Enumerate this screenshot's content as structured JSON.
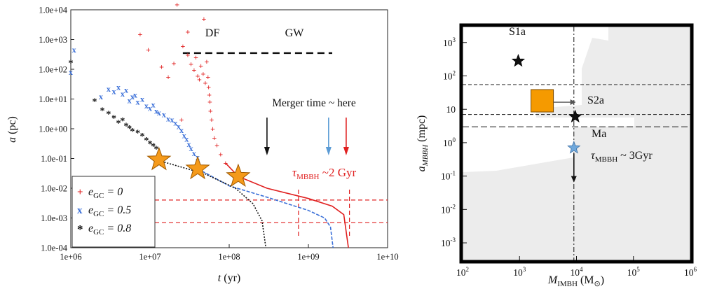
{
  "chart_data": [
    {
      "type": "scatter",
      "x_scale": "log",
      "y_scale": "log",
      "xlim": [
        1000000.0,
        10000000000.0
      ],
      "ylim": [
        0.0001,
        10000.0
      ],
      "x_ticks": [
        1000000.0,
        10000000.0,
        100000000.0,
        1000000000.0,
        10000000000.0
      ],
      "x_tick_labels": [
        "1e+06",
        "1e+07",
        "1e+08",
        "1e+09",
        "1e+10"
      ],
      "y_ticks": [
        0.0001,
        0.001,
        0.01,
        0.1,
        1,
        10,
        100,
        1000,
        10000
      ],
      "y_tick_labels": [
        "1.0e-04",
        "1.0e-03",
        "1.0e-02",
        "1.0e-01",
        "1.0e+00",
        "1.0e+01",
        "1.0e+02",
        "1.0e+03",
        "1.0e+04"
      ],
      "xlabel": {
        "sym": "t",
        "unit": " (yr)"
      },
      "ylabel": {
        "sym": "a",
        "unit": " (pc)"
      },
      "grid": false,
      "legend_position": "lower-left",
      "legend": [
        {
          "marker": "+",
          "pre": "e",
          "sub": "GC",
          "post": " = 0",
          "color": "#e02020"
        },
        {
          "marker": "x",
          "pre": "e",
          "sub": "GC",
          "post": " = 0.5",
          "color": "#3a6fd8"
        },
        {
          "marker": "*",
          "pre": "e",
          "sub": "GC",
          "post": " = 0.8",
          "color": "#111111"
        }
      ],
      "series": [
        {
          "color": "#e02020",
          "marker": "+",
          "points": [
            [
              22000000,
              15000
            ],
            [
              48000000,
              5000
            ],
            [
              7500000,
              1500
            ],
            [
              30000000,
              1800
            ],
            [
              9500000,
              450
            ],
            [
              14000000,
              120
            ],
            [
              17000000,
              55
            ],
            [
              20000000,
              160
            ],
            [
              25000000,
              2
            ],
            [
              26000000,
              600
            ],
            [
              30000000,
              300
            ],
            [
              33000000,
              150
            ],
            [
              36000000,
              95
            ],
            [
              38000000,
              250
            ],
            [
              40000000,
              60
            ],
            [
              42000000,
              45
            ],
            [
              44000000,
              130
            ],
            [
              47000000,
              70
            ],
            [
              50000000,
              35
            ],
            [
              52000000,
              180
            ],
            [
              54000000,
              55
            ],
            [
              55000000,
              25
            ],
            [
              56000000,
              14
            ],
            [
              57000000,
              8
            ],
            [
              58000000,
              4
            ],
            [
              60000000,
              2
            ],
            [
              62000000,
              1
            ],
            [
              65000000,
              0.5
            ],
            [
              70000000,
              0.28
            ],
            [
              78000000,
              0.14
            ],
            [
              90000000,
              0.07
            ]
          ],
          "curve": [
            [
              90000000,
              0.07
            ],
            [
              130000000,
              0.025
            ],
            [
              300000000,
              0.01
            ],
            [
              1000000000,
              0.0045
            ],
            [
              2000000000,
              0.0025
            ],
            [
              2800000000,
              0.0013
            ],
            [
              3200000000,
              0.0001
            ]
          ]
        },
        {
          "color": "#3a6fd8",
          "marker": "x",
          "points": [
            [
              1100000,
              450
            ],
            [
              1000000,
              80
            ],
            [
              2400000,
              12
            ],
            [
              3000000,
              22
            ],
            [
              3500000,
              18
            ],
            [
              4000000,
              25
            ],
            [
              4500000,
              15
            ],
            [
              5000000,
              20
            ],
            [
              5500000,
              9
            ],
            [
              6000000,
              12
            ],
            [
              6500000,
              14
            ],
            [
              7000000,
              8
            ],
            [
              8000000,
              10
            ],
            [
              9000000,
              6
            ],
            [
              10000000,
              5
            ],
            [
              11000000,
              6.5
            ],
            [
              12000000,
              4
            ],
            [
              13000000,
              3.5
            ],
            [
              15000000,
              3
            ],
            [
              17000000,
              2.2
            ],
            [
              19000000,
              2
            ],
            [
              21000000,
              1.6
            ],
            [
              23000000,
              1.2
            ],
            [
              25000000,
              0.9
            ],
            [
              27000000,
              0.6
            ],
            [
              29000000,
              0.45
            ],
            [
              31000000,
              0.3
            ],
            [
              33000000,
              0.22
            ],
            [
              36000000,
              0.15
            ],
            [
              40000000,
              0.11
            ]
          ],
          "curve": [
            [
              40000000,
              0.045
            ],
            [
              100000000,
              0.012
            ],
            [
              300000000,
              0.005
            ],
            [
              1000000000,
              0.0018
            ],
            [
              1600000000,
              0.001
            ],
            [
              1900000000,
              0.0005
            ],
            [
              2050000000,
              0.0001
            ]
          ]
        },
        {
          "color": "#111111",
          "marker": "*",
          "points": [
            [
              1000000,
              160
            ],
            [
              2000000,
              8
            ],
            [
              2500000,
              4
            ],
            [
              3000000,
              3
            ],
            [
              3500000,
              2.2
            ],
            [
              4000000,
              1.5
            ],
            [
              4500000,
              1.8
            ],
            [
              5000000,
              1.2
            ],
            [
              5500000,
              1
            ],
            [
              6000000,
              0.8
            ],
            [
              7000000,
              0.7
            ],
            [
              8000000,
              0.55
            ],
            [
              9000000,
              0.4
            ],
            [
              10000000,
              0.3
            ],
            [
              11000000,
              0.25
            ],
            [
              12000000,
              0.2
            ]
          ],
          "curve": [
            [
              12000000,
              0.09
            ],
            [
              50000000,
              0.03
            ],
            [
              120000000,
              0.01
            ],
            [
              200000000,
              0.003
            ],
            [
              260000000,
              0.0008
            ],
            [
              290000000,
              0.0001
            ]
          ]
        }
      ],
      "stars": [
        [
          13000000,
          0.09
        ],
        [
          40000000,
          0.045
        ],
        [
          130000000,
          0.025
        ]
      ],
      "df_gw_line": {
        "y": 350,
        "x": [
          26000000,
          2000000000
        ]
      },
      "annotations": {
        "df": "DF",
        "gw": "GW",
        "merger": "Merger time ~ here",
        "tau_sym": "τ",
        "tau_sub": "MBBH",
        "tau_val": " ~2 Gyr"
      },
      "arrows": [
        {
          "x": 300000000,
          "color": "#111111"
        },
        {
          "x": 1800000000,
          "color": "#5b9bd5"
        },
        {
          "x": 3000000000,
          "color": "#e02020"
        }
      ],
      "red_dashed": {
        "h": [
          0.004,
          0.0007
        ],
        "v": [
          750000000,
          3300000000
        ]
      }
    },
    {
      "type": "scatter",
      "x_scale": "log",
      "y_scale": "log",
      "xlim": [
        100,
        1000000
      ],
      "ylim": [
        0.0003,
        3000
      ],
      "x_tick_labels": [
        {
          "base": "10",
          "exp": "2"
        },
        {
          "base": "10",
          "exp": "3"
        },
        {
          "base": "10",
          "exp": "4"
        },
        {
          "base": "10",
          "exp": "5"
        },
        {
          "base": "10",
          "exp": "6"
        }
      ],
      "x_tick_values": [
        100,
        1000,
        10000,
        100000,
        1000000
      ],
      "y_tick_labels": [
        {
          "base": "10",
          "exp": "-3"
        },
        {
          "base": "10",
          "exp": "-2"
        },
        {
          "base": "10",
          "exp": "-1"
        },
        {
          "base": "10",
          "exp": "0"
        },
        {
          "base": "10",
          "exp": ""
        },
        {
          "base": "10",
          "exp": "2"
        },
        {
          "base": "10",
          "exp": "3"
        }
      ],
      "y_tick_values": [
        0.001,
        0.01,
        0.1,
        1,
        10,
        100,
        1000
      ],
      "xlabel": {
        "sym": "M",
        "sub": "IMBH",
        "unit": " (M",
        "sun": "⊙",
        "close": ")"
      },
      "ylabel": {
        "sym": "a",
        "sub": "MBBH",
        "unit": " (mpc)"
      },
      "grid": false,
      "points": [
        {
          "label": "S1a",
          "x": 950,
          "y": 280,
          "marker": "star",
          "color": "#111111"
        },
        {
          "label": "S2a",
          "x": 9500,
          "y": 6,
          "marker": "star",
          "color": "#111111"
        },
        {
          "label": "Ma",
          "x": 9000,
          "y": 0.7,
          "marker": "star",
          "color": "#6fa8dc"
        }
      ],
      "square": {
        "x": 2500,
        "y": 18,
        "color": "#f59a00"
      },
      "vline_x": 9000,
      "hlines_y": [
        55,
        7,
        3
      ],
      "tau_label": {
        "sym": "τ",
        "sub": "MBBH",
        "post": " ~ 3Gyr"
      }
    }
  ]
}
